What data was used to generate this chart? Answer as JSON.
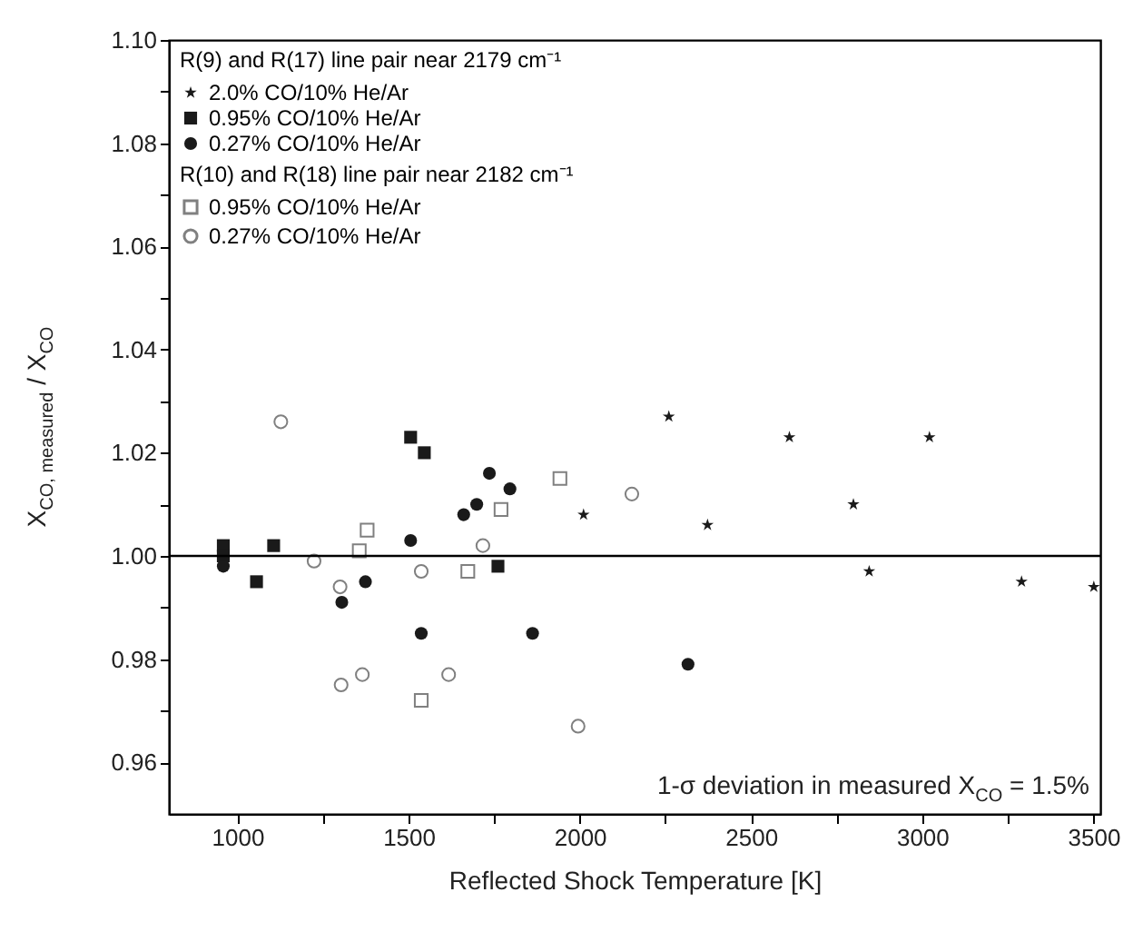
{
  "chart_data": {
    "type": "scatter",
    "xlabel": "Reflected Shock Temperature [K]",
    "ylabel": "X$_{CO, measured}$ / X$_{CO}$",
    "legend_title": [
      "R(9) and R(17) line pair near 2179 cm⁻¹",
      "R(10) and R(18) line pair near 2182 cm⁻¹"
    ],
    "series": [
      {
        "name": "2.0% CO/10% He/Ar",
        "color": "#1a1a1a",
        "marker": "star",
        "x": [
          2011,
          2260,
          2373,
          2612,
          2799,
          2845,
          3021,
          3290,
          3501
        ],
        "values": [
          1.008,
          1.027,
          1.006,
          1.023,
          1.01,
          0.997,
          1.023,
          0.995,
          0.994
        ]
      },
      {
        "name": "0.95% CO/10% He/Ar",
        "color": "#1a1a1a",
        "marker": "square",
        "x": [
          959,
          959,
          1056,
          1106,
          1506,
          1546,
          1761
        ],
        "values": [
          1.002,
          1.0,
          0.995,
          1.002,
          1.023,
          1.02,
          0.998
        ]
      },
      {
        "name": "0.27% CO/10% He/Ar",
        "color": "#1a1a1a",
        "marker": "circle",
        "x": [
          959,
          1305,
          1374,
          1506,
          1537,
          1661,
          1699,
          1736,
          1796,
          1862,
          2316
        ],
        "values": [
          0.998,
          0.991,
          0.995,
          1.003,
          0.985,
          1.008,
          1.01,
          1.016,
          1.013,
          0.985,
          0.979
        ]
      },
      {
        "name": "0.95% CO/10% He/Ar",
        "color": "#808080",
        "marker": "square",
        "x": [
          1356,
          1379,
          1537,
          1673,
          1770,
          1942
        ],
        "values": [
          1.001,
          1.005,
          0.972,
          0.997,
          1.009,
          1.015
        ]
      },
      {
        "name": "0.27% CO/10% He/Ar",
        "color": "#808080",
        "marker": "circle",
        "x": [
          1127,
          1224,
          1300,
          1303,
          1365,
          1537,
          1617,
          1717,
          1995,
          2152
        ],
        "values": [
          1.026,
          0.999,
          0.994,
          0.975,
          0.977,
          0.997,
          0.977,
          1.002,
          0.967,
          1.012
        ]
      }
    ],
    "xlim": [
      800,
      3520
    ],
    "xticks": [
      1000,
      {
        "value": 1250,
        "label": null
      },
      1500,
      {
        "value": 1750,
        "label": null
      },
      2000,
      {
        "value": 2250,
        "label": null
      },
      2500,
      {
        "value": 2750,
        "label": null
      },
      3000,
      {
        "value": 3250,
        "label": null
      },
      3500
    ],
    "ylim": [
      0.95,
      1.1
    ],
    "yticks": [
      {
        "value": 0.96,
        "label": "0.96"
      },
      {
        "value": 0.97,
        "label": null
      },
      {
        "value": 0.98,
        "label": "0.98"
      },
      {
        "value": 0.99,
        "label": null
      },
      {
        "value": 1.0,
        "label": "1.00"
      },
      {
        "value": 1.01,
        "label": null
      },
      {
        "value": 1.02,
        "label": "1.02"
      },
      {
        "value": 1.03,
        "label": null
      },
      {
        "value": 1.04,
        "label": "1.04"
      },
      {
        "value": 1.05,
        "label": null
      },
      {
        "value": 1.06,
        "label": "1.06"
      },
      {
        "value": 1.07,
        "label": null
      },
      {
        "value": 1.08,
        "label": "1.08"
      },
      {
        "value": 1.09,
        "label": null
      },
      {
        "value": 1.1,
        "label": "1.10"
      }
    ],
    "ref_lines": [
      {
        "axis": "y",
        "value": 1.0,
        "color": "#000000"
      }
    ],
    "annotations": [
      "1-σ deviation in measured X$_{CO}$ = 1.5%"
    ],
    "grid": false,
    "legend": "top left"
  }
}
